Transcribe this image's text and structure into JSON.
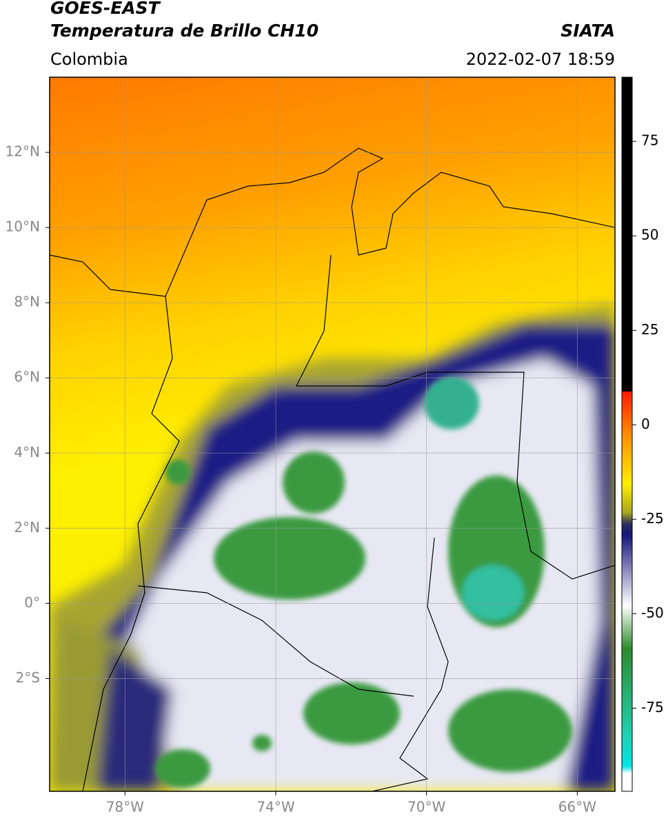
{
  "header": {
    "title": "GOES-EAST",
    "subtitle": "Temperatura de Brillo CH10",
    "source": "SIATA",
    "region": "Colombia",
    "datetime": "2022-02-07 18:59"
  },
  "map": {
    "xlim": [
      -80,
      -65
    ],
    "ylim": [
      -5,
      14
    ],
    "xticks": [
      {
        "value": -78,
        "label": "78°W"
      },
      {
        "value": -74,
        "label": "74°W"
      },
      {
        "value": -70,
        "label": "70°W"
      },
      {
        "value": -66,
        "label": "66°W"
      }
    ],
    "yticks": [
      {
        "value": 12,
        "label": "12°N"
      },
      {
        "value": 10,
        "label": "10°N"
      },
      {
        "value": 8,
        "label": "8°N"
      },
      {
        "value": 6,
        "label": "6°N"
      },
      {
        "value": 4,
        "label": "4°N"
      },
      {
        "value": 2,
        "label": "2°N"
      },
      {
        "value": 0,
        "label": "0°"
      },
      {
        "value": -2,
        "label": "2°S"
      }
    ],
    "grid": true
  },
  "colorbar": {
    "lim": [
      -97,
      92
    ],
    "ticks": [
      75,
      50,
      25,
      0,
      -25,
      -50,
      -75
    ]
  }
}
